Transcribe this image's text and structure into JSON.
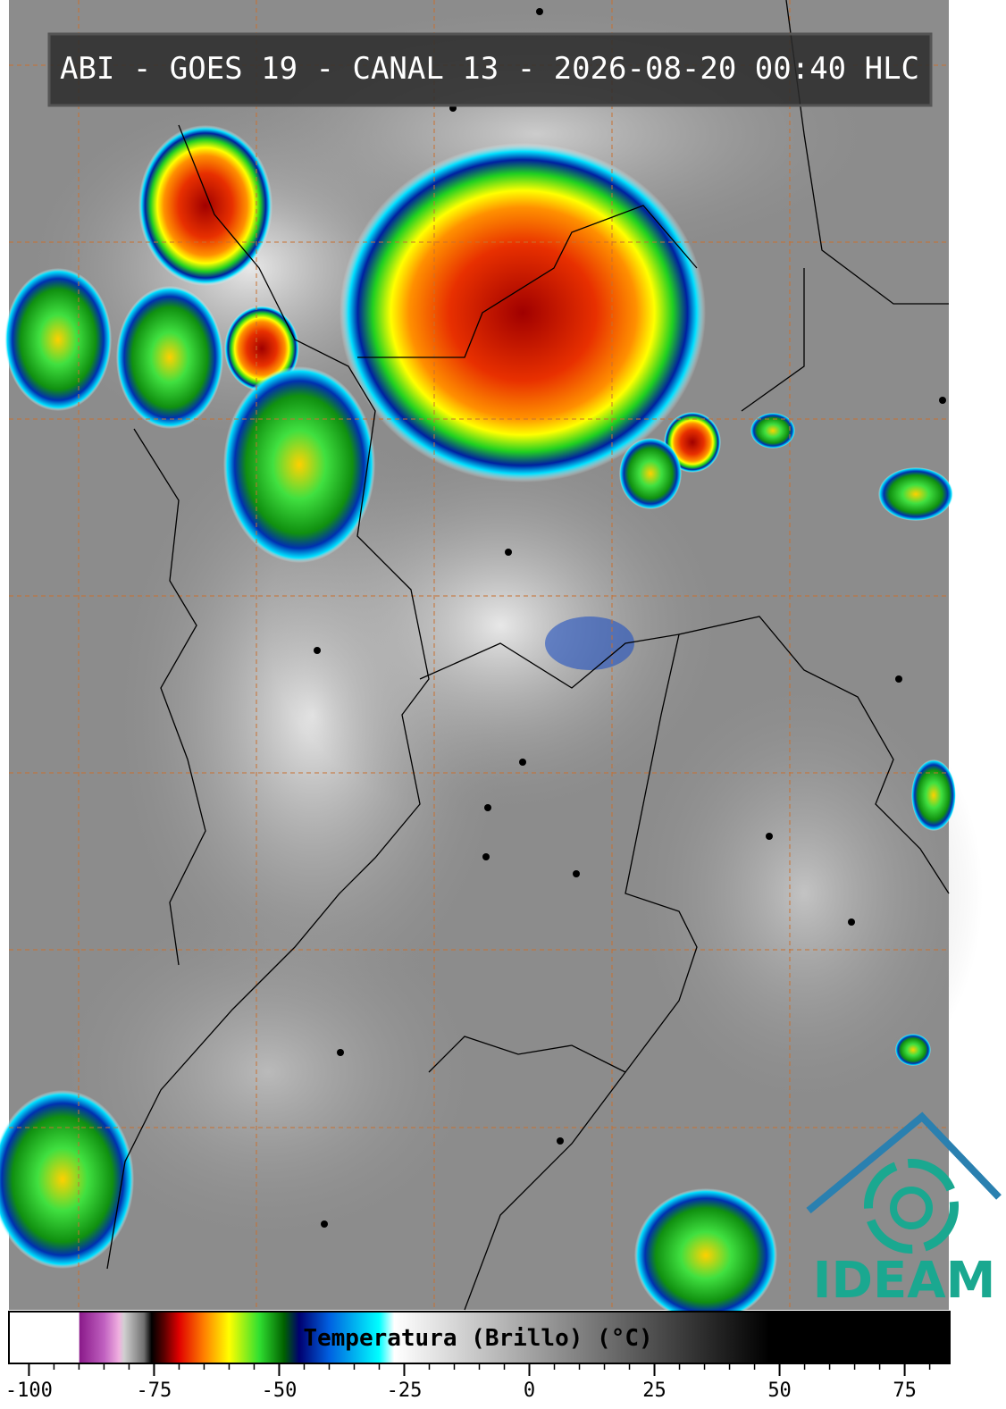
{
  "header": {
    "title": "ABI - GOES 19 - CANAL 13 - 2026-08-20 00:40 HLC"
  },
  "logo": {
    "text": "IDEAM"
  },
  "colorbar": {
    "label": "Temperatura (Brillo) (°C)",
    "lim": [
      -104,
      84
    ],
    "ticks": [
      -100,
      -75,
      -50,
      -25,
      0,
      25,
      50,
      75
    ],
    "minor_step": 5,
    "stops": [
      {
        "value": -104,
        "color": "#ffffff"
      },
      {
        "value": -90,
        "color": "#ffffff"
      },
      {
        "value": -89.9,
        "color": "#8a1a8a"
      },
      {
        "value": -85,
        "color": "#c060c0"
      },
      {
        "value": -82,
        "color": "#f0b0e0"
      },
      {
        "value": -81,
        "color": "#d0d0d0"
      },
      {
        "value": -77,
        "color": "#707070"
      },
      {
        "value": -75.5,
        "color": "#000000"
      },
      {
        "value": -73,
        "color": "#5a0000"
      },
      {
        "value": -70,
        "color": "#e00000"
      },
      {
        "value": -65,
        "color": "#ff8000"
      },
      {
        "value": -60,
        "color": "#ffff00"
      },
      {
        "value": -54,
        "color": "#30e030"
      },
      {
        "value": -49,
        "color": "#006000"
      },
      {
        "value": -46,
        "color": "#000070"
      },
      {
        "value": -40,
        "color": "#0060e0"
      },
      {
        "value": -30,
        "color": "#00ffff"
      },
      {
        "value": -27,
        "color": "#ffffff"
      },
      {
        "value": 48,
        "color": "#000000"
      },
      {
        "value": 84,
        "color": "#000000"
      }
    ]
  }
}
